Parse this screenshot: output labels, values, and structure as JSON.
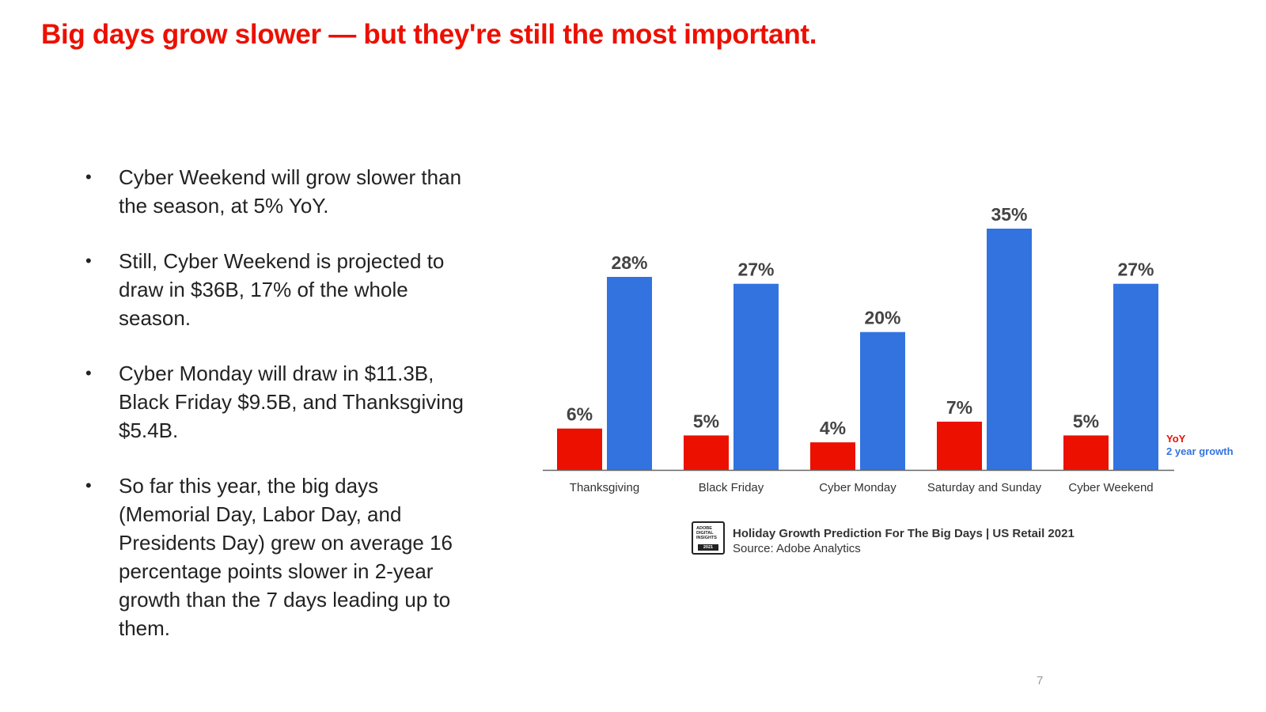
{
  "slide": {
    "title": "Big days grow slower — but they're still the most important.",
    "page_number": "7",
    "bullet_symbol": "•",
    "bullets": [
      "Cyber Weekend will grow slower than the season, at 5% YoY.",
      "Still, Cyber Weekend is projected to draw in $36B, 17% of the whole season.",
      "Cyber Monday will draw in $11.3B, Black Friday $9.5B, and Thanksgiving $5.4B.",
      "So far this year, the big days (Memorial Day, Labor Day, and Presidents Day) grew on average 16 percentage points slower in 2-year growth than the 7 days leading up to them."
    ]
  },
  "badge": {
    "lines": [
      "ADOBE",
      "DIGITAL",
      "INSIGHTS"
    ],
    "year": "2021"
  },
  "caption": {
    "title": "Holiday Growth Prediction For The Big Days | US Retail 2021",
    "source": "Source: Adobe Analytics"
  },
  "colors": {
    "title": "#eb1000",
    "yoy": "#eb1000",
    "two_year": "#3273e0",
    "label": "#444444",
    "axis": "#666666"
  },
  "chart_data": {
    "type": "bar",
    "categories": [
      "Thanksgiving",
      "Black Friday",
      "Cyber Monday",
      "Saturday and Sunday",
      "Cyber Weekend"
    ],
    "series": [
      {
        "name": "YoY",
        "values": [
          6,
          5,
          4,
          7,
          5
        ],
        "labels": [
          "6%",
          "5%",
          "4%",
          "7%",
          "5%"
        ]
      },
      {
        "name": "2 year growth",
        "values": [
          28,
          27,
          20,
          35,
          27
        ],
        "labels": [
          "28%",
          "27%",
          "20%",
          "35%",
          "27%"
        ]
      }
    ],
    "ylim": [
      0,
      35
    ],
    "legend_position": "right",
    "grid": false
  }
}
